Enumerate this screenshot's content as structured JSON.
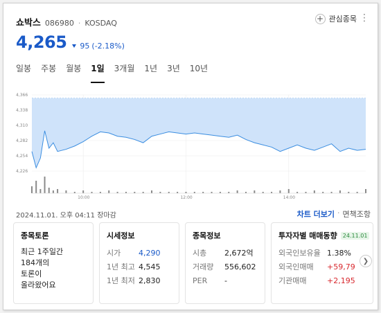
{
  "stock": {
    "name": "쇼박스",
    "code": "086980",
    "separator": "·",
    "market": "KOSDAQ",
    "price": "4,265",
    "change": "95",
    "change_pct": "(-2.18%)"
  },
  "actions": {
    "favorite": "관심종목",
    "more": "⋮",
    "chart_more": "차트 더보기",
    "separator": "·",
    "financials": "면책조항"
  },
  "tabs": [
    "일봉",
    "주봉",
    "월봉",
    "1일",
    "3개월",
    "1년",
    "3년",
    "10년"
  ],
  "active_tab": "1일",
  "date_line": "2024.11.01. 오후 04:11 장마감",
  "chart_data": {
    "type": "area",
    "y_ticks": [
      "4,366",
      "4,338",
      "4,310",
      "4,282",
      "4,254",
      "4,226"
    ],
    "ylim": [
      4226,
      4366
    ],
    "x_ticks": [
      "10:00",
      "12:00",
      "14:00"
    ],
    "x_range": [
      "09:00",
      "15:30"
    ],
    "x": [
      "09:00",
      "09:05",
      "09:10",
      "09:15",
      "09:20",
      "09:25",
      "09:30",
      "09:40",
      "09:50",
      "10:00",
      "10:10",
      "10:20",
      "10:30",
      "10:40",
      "10:50",
      "11:00",
      "11:10",
      "11:20",
      "11:30",
      "11:40",
      "11:50",
      "12:00",
      "12:10",
      "12:20",
      "12:30",
      "12:40",
      "12:50",
      "13:00",
      "13:10",
      "13:20",
      "13:30",
      "13:40",
      "13:50",
      "14:00",
      "14:10",
      "14:20",
      "14:30",
      "14:40",
      "14:50",
      "15:00",
      "15:10",
      "15:20",
      "15:30"
    ],
    "values": [
      4262,
      4232,
      4250,
      4300,
      4268,
      4278,
      4262,
      4266,
      4272,
      4280,
      4290,
      4298,
      4296,
      4290,
      4288,
      4284,
      4278,
      4290,
      4294,
      4298,
      4296,
      4294,
      4296,
      4294,
      4292,
      4290,
      4288,
      4292,
      4284,
      4278,
      4274,
      4270,
      4262,
      4268,
      4274,
      4268,
      4264,
      4270,
      4276,
      4262,
      4268,
      4264,
      4266
    ],
    "volume": [
      5,
      9,
      3,
      12,
      4,
      2,
      3,
      2,
      1,
      2,
      1,
      1,
      2,
      1,
      1,
      1,
      1,
      2,
      1,
      1,
      1,
      1,
      1,
      1,
      1,
      1,
      1,
      2,
      1,
      2,
      1,
      1,
      2,
      3,
      1,
      1,
      2,
      1,
      1,
      2,
      1,
      1,
      3
    ],
    "reference_price": 4360,
    "colors": {
      "fill": "#cfe3fa",
      "line": "#3a8de0",
      "volume": "#8a8a8a"
    }
  },
  "cards": {
    "talk": {
      "title": "종목토론",
      "lines": [
        "최근 1주일간",
        "184개의",
        "토론이",
        "올라왔어요"
      ]
    },
    "market_info": {
      "title": "시세정보",
      "rows": [
        {
          "k": "시가",
          "v": "4,290"
        },
        {
          "k": "1년 최고",
          "v": "4,545"
        },
        {
          "k": "1년 최저",
          "v": "2,830"
        }
      ]
    },
    "stock_info": {
      "title": "종목정보",
      "rows": [
        {
          "k": "시총",
          "v": "2,672억"
        },
        {
          "k": "거래량",
          "v": "556,602"
        },
        {
          "k": "PER",
          "v": "-"
        }
      ]
    },
    "investor": {
      "title": "투자자별 매매동향",
      "badge": "24.11.01",
      "rows": [
        {
          "k": "외국인보유율",
          "v": "1.38%"
        },
        {
          "k": "외국인매매",
          "v": "+59,79"
        },
        {
          "k": "기관매매",
          "v": "+2,195"
        }
      ]
    }
  }
}
